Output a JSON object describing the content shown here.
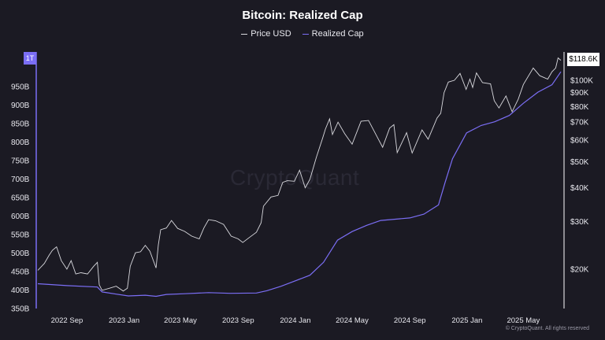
{
  "title": "Bitcoin: Realized Cap",
  "legend": [
    "Price USD",
    "Realized Cap"
  ],
  "watermark": "CryptoQuant",
  "copyright": "© CryptoQuant. All rights reserved",
  "last_price_label": "$118.6K",
  "left_badge": "1T",
  "colors": {
    "background": "#1b1a23",
    "price": "#d9d9de",
    "realized_cap": "#7b6ef5",
    "left_axis": "#7b6ef5",
    "right_axis": "#ffffff"
  },
  "chart_data": {
    "type": "line",
    "title": "Bitcoin: Realized Cap",
    "x_tick_labels": [
      "2022 Sep",
      "2023 Jan",
      "2023 May",
      "2023 Sep",
      "2024 Jan",
      "2024 May",
      "2024 Sep",
      "2025 Jan",
      "2025 May"
    ],
    "left_axis": {
      "tick_labels": [
        "350B",
        "400B",
        "450B",
        "500B",
        "550B",
        "600B",
        "650B",
        "700B",
        "750B",
        "800B",
        "850B",
        "900B",
        "950B"
      ],
      "ylim": [
        350,
        1000
      ],
      "unit": "B"
    },
    "right_axis": {
      "scale": "log",
      "tick_labels": [
        "$20K",
        "$30K",
        "$40K",
        "$50K",
        "$60K",
        "$70K",
        "$80K",
        "$90K",
        "$100K"
      ],
      "tick_values": [
        20000,
        30000,
        40000,
        50000,
        60000,
        70000,
        80000,
        90000,
        100000
      ],
      "ylim": [
        15500,
        122000
      ]
    },
    "grid": false,
    "legend_placement": "top-center",
    "series": [
      {
        "name": "Price USD",
        "axis": "right",
        "points": [
          [
            "2022-07-01",
            19800
          ],
          [
            "2022-07-15",
            21000
          ],
          [
            "2022-07-25",
            22500
          ],
          [
            "2022-08-01",
            23500
          ],
          [
            "2022-08-10",
            24200
          ],
          [
            "2022-08-20",
            21500
          ],
          [
            "2022-09-01",
            20000
          ],
          [
            "2022-09-10",
            21500
          ],
          [
            "2022-09-20",
            19200
          ],
          [
            "2022-10-01",
            19400
          ],
          [
            "2022-10-15",
            19200
          ],
          [
            "2022-10-28",
            20500
          ],
          [
            "2022-11-05",
            21200
          ],
          [
            "2022-11-09",
            17500
          ],
          [
            "2022-11-15",
            16700
          ],
          [
            "2022-12-01",
            17000
          ],
          [
            "2022-12-15",
            17300
          ],
          [
            "2022-12-30",
            16600
          ],
          [
            "2023-01-08",
            17000
          ],
          [
            "2023-01-14",
            20500
          ],
          [
            "2023-01-25",
            23000
          ],
          [
            "2023-02-05",
            23200
          ],
          [
            "2023-02-15",
            24500
          ],
          [
            "2023-02-25",
            23300
          ],
          [
            "2023-03-10",
            20200
          ],
          [
            "2023-03-15",
            24600
          ],
          [
            "2023-03-20",
            28000
          ],
          [
            "2023-04-01",
            28400
          ],
          [
            "2023-04-12",
            30300
          ],
          [
            "2023-04-25",
            28300
          ],
          [
            "2023-05-10",
            27600
          ],
          [
            "2023-05-25",
            26500
          ],
          [
            "2023-06-10",
            25900
          ],
          [
            "2023-06-20",
            28400
          ],
          [
            "2023-06-30",
            30500
          ],
          [
            "2023-07-15",
            30200
          ],
          [
            "2023-08-01",
            29300
          ],
          [
            "2023-08-17",
            26500
          ],
          [
            "2023-09-01",
            25900
          ],
          [
            "2023-09-11",
            25100
          ],
          [
            "2023-09-25",
            26200
          ],
          [
            "2023-10-10",
            27400
          ],
          [
            "2023-10-20",
            29700
          ],
          [
            "2023-10-25",
            34200
          ],
          [
            "2023-11-10",
            37000
          ],
          [
            "2023-11-25",
            37500
          ],
          [
            "2023-12-05",
            41900
          ],
          [
            "2023-12-15",
            42500
          ],
          [
            "2023-12-30",
            42300
          ],
          [
            "2024-01-10",
            46500
          ],
          [
            "2024-01-22",
            40000
          ],
          [
            "2024-02-01",
            43000
          ],
          [
            "2024-02-15",
            52000
          ],
          [
            "2024-02-28",
            61000
          ],
          [
            "2024-03-05",
            66000
          ],
          [
            "2024-03-14",
            72000
          ],
          [
            "2024-03-20",
            63000
          ],
          [
            "2024-04-01",
            70000
          ],
          [
            "2024-04-15",
            63500
          ],
          [
            "2024-05-01",
            58000
          ],
          [
            "2024-05-20",
            70500
          ],
          [
            "2024-06-05",
            71000
          ],
          [
            "2024-06-25",
            61000
          ],
          [
            "2024-07-05",
            56500
          ],
          [
            "2024-07-20",
            66500
          ],
          [
            "2024-07-29",
            68500
          ],
          [
            "2024-08-05",
            54000
          ],
          [
            "2024-08-25",
            64000
          ],
          [
            "2024-09-06",
            53800
          ],
          [
            "2024-09-27",
            65500
          ],
          [
            "2024-10-10",
            60500
          ],
          [
            "2024-10-29",
            72500
          ],
          [
            "2024-11-06",
            75500
          ],
          [
            "2024-11-13",
            90000
          ],
          [
            "2024-11-22",
            98500
          ],
          [
            "2024-12-05",
            100000
          ],
          [
            "2024-12-17",
            106000
          ],
          [
            "2024-12-30",
            92500
          ],
          [
            "2025-01-07",
            101000
          ],
          [
            "2025-01-13",
            94000
          ],
          [
            "2025-01-21",
            106500
          ],
          [
            "2025-02-03",
            98000
          ],
          [
            "2025-02-20",
            97000
          ],
          [
            "2025-02-28",
            84000
          ],
          [
            "2025-03-10",
            79000
          ],
          [
            "2025-03-25",
            87500
          ],
          [
            "2025-04-07",
            76500
          ],
          [
            "2025-04-20",
            85000
          ],
          [
            "2025-05-01",
            96500
          ],
          [
            "2025-05-22",
            111000
          ],
          [
            "2025-06-05",
            104000
          ],
          [
            "2025-06-22",
            101000
          ],
          [
            "2025-07-01",
            107500
          ],
          [
            "2025-07-09",
            111000
          ],
          [
            "2025-07-14",
            121000
          ],
          [
            "2025-07-20",
            118600
          ]
        ]
      },
      {
        "name": "Realized Cap",
        "axis": "left",
        "unit": "B",
        "points": [
          [
            "2022-07-01",
            417
          ],
          [
            "2022-09-01",
            412
          ],
          [
            "2022-11-05",
            408
          ],
          [
            "2022-11-15",
            395
          ],
          [
            "2022-12-15",
            389
          ],
          [
            "2023-01-10",
            384
          ],
          [
            "2023-02-15",
            386
          ],
          [
            "2023-03-10",
            383
          ],
          [
            "2023-04-01",
            388
          ],
          [
            "2023-05-10",
            390
          ],
          [
            "2023-06-30",
            393
          ],
          [
            "2023-08-15",
            391
          ],
          [
            "2023-10-10",
            392
          ],
          [
            "2023-11-01",
            398
          ],
          [
            "2023-12-01",
            410
          ],
          [
            "2024-01-01",
            425
          ],
          [
            "2024-02-01",
            440
          ],
          [
            "2024-03-01",
            475
          ],
          [
            "2024-03-31",
            535
          ],
          [
            "2024-05-01",
            558
          ],
          [
            "2024-06-01",
            575
          ],
          [
            "2024-07-01",
            588
          ],
          [
            "2024-09-01",
            595
          ],
          [
            "2024-10-01",
            605
          ],
          [
            "2024-11-01",
            630
          ],
          [
            "2024-11-15",
            690
          ],
          [
            "2024-12-01",
            755
          ],
          [
            "2024-12-31",
            825
          ],
          [
            "2025-01-31",
            845
          ],
          [
            "2025-03-01",
            855
          ],
          [
            "2025-04-01",
            872
          ],
          [
            "2025-05-01",
            905
          ],
          [
            "2025-06-01",
            935
          ],
          [
            "2025-07-01",
            955
          ],
          [
            "2025-07-20",
            990
          ]
        ]
      }
    ]
  }
}
